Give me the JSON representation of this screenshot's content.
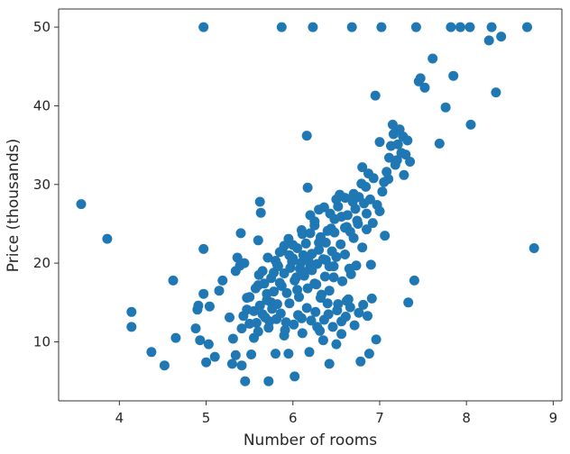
{
  "chart_data": {
    "type": "scatter",
    "title": "",
    "xlabel": "Number of rooms",
    "ylabel": "Price (thousands)",
    "xlim": [
      3.3,
      9.1
    ],
    "ylim": [
      2.5,
      52.3
    ],
    "xticks": [
      4,
      5,
      6,
      7,
      8,
      9
    ],
    "yticks": [
      10,
      20,
      30,
      40,
      50
    ],
    "grid": false,
    "marker_color": "#1f77b4",
    "series": [
      {
        "points": [
          [
            3.56,
            27.5
          ],
          [
            3.86,
            23.1
          ],
          [
            4.14,
            13.8
          ],
          [
            4.14,
            11.9
          ],
          [
            4.37,
            8.7
          ],
          [
            4.52,
            7.0
          ],
          [
            4.62,
            17.8
          ],
          [
            4.65,
            10.5
          ],
          [
            4.88,
            11.7
          ],
          [
            4.9,
            14.1
          ],
          [
            4.91,
            14.6
          ],
          [
            4.93,
            10.2
          ],
          [
            4.97,
            21.8
          ],
          [
            4.97,
            50.0
          ],
          [
            4.97,
            16.1
          ],
          [
            5.0,
            7.4
          ],
          [
            5.03,
            9.7
          ],
          [
            5.04,
            14.5
          ],
          [
            5.1,
            8.1
          ],
          [
            5.15,
            16.5
          ],
          [
            5.19,
            17.8
          ],
          [
            5.27,
            13.1
          ],
          [
            5.3,
            7.2
          ],
          [
            5.31,
            10.4
          ],
          [
            5.34,
            8.3
          ],
          [
            5.34,
            19.0
          ],
          [
            5.36,
            20.7
          ],
          [
            5.39,
            19.7
          ],
          [
            5.4,
            23.8
          ],
          [
            5.41,
            11.7
          ],
          [
            5.41,
            7.0
          ],
          [
            5.43,
            13.3
          ],
          [
            5.44,
            20.0
          ],
          [
            5.45,
            5.0
          ],
          [
            5.47,
            15.6
          ],
          [
            5.47,
            14.1
          ],
          [
            5.5,
            12.3
          ],
          [
            5.52,
            8.4
          ],
          [
            5.55,
            10.5
          ],
          [
            5.57,
            16.8
          ],
          [
            5.6,
            22.9
          ],
          [
            5.6,
            11.3
          ],
          [
            5.61,
            18.5
          ],
          [
            5.62,
            27.8
          ],
          [
            5.63,
            26.4
          ],
          [
            5.65,
            13.5
          ],
          [
            5.67,
            17.4
          ],
          [
            5.7,
            16.1
          ],
          [
            5.71,
            20.7
          ],
          [
            5.72,
            5.0
          ],
          [
            5.73,
            12.6
          ],
          [
            5.75,
            15.0
          ],
          [
            5.78,
            18.8
          ],
          [
            5.8,
            8.5
          ],
          [
            5.82,
            14.8
          ],
          [
            5.83,
            19.6
          ],
          [
            5.87,
            50.0
          ],
          [
            5.87,
            17.1
          ],
          [
            5.88,
            21.6
          ],
          [
            5.9,
            10.8
          ],
          [
            5.92,
            12.5
          ],
          [
            5.95,
            8.5
          ],
          [
            5.96,
            21.0
          ],
          [
            5.99,
            20.2
          ],
          [
            6.0,
            22.3
          ],
          [
            6.02,
            5.6
          ],
          [
            6.04,
            18.2
          ],
          [
            6.05,
            16.6
          ],
          [
            6.09,
            20.0
          ],
          [
            6.1,
            13.0
          ],
          [
            6.11,
            23.7
          ],
          [
            6.13,
            18.4
          ],
          [
            6.16,
            36.2
          ],
          [
            6.17,
            29.6
          ],
          [
            6.19,
            8.7
          ],
          [
            6.2,
            19.5
          ],
          [
            6.23,
            50.0
          ],
          [
            6.25,
            17.4
          ],
          [
            6.28,
            11.9
          ],
          [
            6.3,
            22.6
          ],
          [
            6.33,
            16.0
          ],
          [
            6.35,
            10.2
          ],
          [
            6.38,
            20.4
          ],
          [
            6.4,
            14.9
          ],
          [
            6.42,
            7.2
          ],
          [
            6.44,
            24.4
          ],
          [
            6.47,
            18.2
          ],
          [
            6.5,
            9.7
          ],
          [
            6.54,
            28.7
          ],
          [
            6.56,
            11.0
          ],
          [
            6.6,
            24.5
          ],
          [
            6.64,
            15.4
          ],
          [
            6.68,
            50.0
          ],
          [
            6.7,
            28.8
          ],
          [
            6.73,
            19.7
          ],
          [
            6.78,
            7.5
          ],
          [
            6.8,
            32.2
          ],
          [
            6.85,
            26.3
          ],
          [
            6.9,
            19.8
          ],
          [
            6.95,
            41.3
          ],
          [
            7.0,
            35.4
          ],
          [
            7.02,
            50.0
          ],
          [
            7.06,
            23.5
          ],
          [
            7.1,
            30.7
          ],
          [
            7.15,
            37.6
          ],
          [
            7.2,
            33.1
          ],
          [
            7.27,
            36.1
          ],
          [
            7.33,
            15.0
          ],
          [
            7.4,
            17.8
          ],
          [
            7.42,
            50.0
          ],
          [
            7.47,
            43.5
          ],
          [
            7.52,
            42.3
          ],
          [
            7.61,
            46.0
          ],
          [
            7.69,
            35.2
          ],
          [
            7.76,
            39.8
          ],
          [
            7.82,
            50.0
          ],
          [
            7.85,
            43.8
          ],
          [
            7.93,
            50.0
          ],
          [
            8.04,
            50.0
          ],
          [
            8.05,
            37.6
          ],
          [
            8.26,
            48.3
          ],
          [
            8.29,
            50.0
          ],
          [
            8.34,
            41.7
          ],
          [
            8.4,
            48.8
          ],
          [
            8.7,
            50.0
          ],
          [
            8.78,
            21.9
          ],
          [
            5.8,
            20.3
          ],
          [
            5.85,
            21.4
          ],
          [
            5.9,
            22.2
          ],
          [
            5.95,
            23.1
          ],
          [
            6.0,
            20.6
          ],
          [
            6.05,
            21.9
          ],
          [
            6.08,
            19.3
          ],
          [
            6.1,
            24.2
          ],
          [
            6.12,
            21.0
          ],
          [
            6.15,
            22.5
          ],
          [
            6.18,
            20.3
          ],
          [
            6.2,
            23.8
          ],
          [
            6.22,
            21.2
          ],
          [
            6.25,
            24.8
          ],
          [
            6.28,
            19.9
          ],
          [
            6.3,
            21.7
          ],
          [
            6.32,
            23.3
          ],
          [
            6.35,
            20.5
          ],
          [
            6.38,
            22.6
          ],
          [
            6.4,
            24.1
          ],
          [
            6.42,
            19.6
          ],
          [
            6.45,
            21.5
          ],
          [
            6.48,
            23.9
          ],
          [
            6.5,
            20.8
          ],
          [
            6.55,
            22.4
          ],
          [
            6.6,
            21.1
          ],
          [
            6.62,
            24.6
          ],
          [
            6.65,
            19.3
          ],
          [
            6.7,
            23.2
          ],
          [
            6.75,
            25.0
          ],
          [
            6.8,
            22.0
          ],
          [
            6.85,
            24.3
          ],
          [
            5.6,
            17.2
          ],
          [
            5.65,
            19.0
          ],
          [
            5.7,
            15.3
          ],
          [
            5.75,
            18.1
          ],
          [
            5.78,
            16.4
          ],
          [
            5.82,
            19.8
          ],
          [
            5.85,
            17.5
          ],
          [
            5.9,
            18.7
          ],
          [
            5.93,
            16.2
          ],
          [
            5.97,
            19.4
          ],
          [
            6.02,
            17.8
          ],
          [
            6.07,
            15.7
          ],
          [
            6.12,
            18.9
          ],
          [
            6.17,
            16.8
          ],
          [
            6.22,
            19.1
          ],
          [
            6.27,
            17.3
          ],
          [
            6.32,
            15.6
          ],
          [
            6.37,
            18.3
          ],
          [
            6.42,
            16.5
          ],
          [
            6.47,
            19.6
          ],
          [
            6.52,
            14.8
          ],
          [
            6.57,
            17.7
          ],
          [
            6.62,
            15.2
          ],
          [
            6.67,
            18.6
          ],
          [
            5.5,
            15.7
          ],
          [
            5.55,
            13.9
          ],
          [
            5.58,
            12.4
          ],
          [
            5.62,
            14.6
          ],
          [
            5.68,
            13.1
          ],
          [
            5.72,
            11.8
          ],
          [
            5.76,
            14.2
          ],
          [
            5.81,
            12.9
          ],
          [
            5.86,
            13.6
          ],
          [
            5.91,
            11.5
          ],
          [
            5.96,
            14.9
          ],
          [
            6.01,
            12.2
          ],
          [
            6.06,
            13.4
          ],
          [
            6.11,
            11.1
          ],
          [
            6.16,
            14.3
          ],
          [
            6.21,
            12.7
          ],
          [
            6.26,
            13.8
          ],
          [
            6.31,
            11.4
          ],
          [
            6.36,
            12.8
          ],
          [
            6.41,
            13.5
          ],
          [
            6.46,
            11.9
          ],
          [
            6.51,
            14.0
          ],
          [
            6.56,
            12.6
          ],
          [
            6.61,
            13.2
          ],
          [
            6.66,
            14.4
          ],
          [
            6.71,
            12.1
          ],
          [
            6.76,
            13.7
          ],
          [
            6.81,
            14.7
          ],
          [
            6.86,
            13.3
          ],
          [
            6.91,
            15.5
          ],
          [
            6.96,
            10.3
          ],
          [
            6.88,
            8.5
          ],
          [
            6.92,
            25.1
          ],
          [
            6.97,
            27.4
          ],
          [
            7.0,
            26.6
          ],
          [
            7.03,
            29.1
          ],
          [
            7.05,
            30.3
          ],
          [
            7.08,
            31.6
          ],
          [
            7.11,
            33.4
          ],
          [
            7.13,
            34.9
          ],
          [
            7.16,
            36.4
          ],
          [
            7.18,
            32.5
          ],
          [
            7.21,
            35.1
          ],
          [
            7.23,
            37.0
          ],
          [
            7.25,
            34.0
          ],
          [
            7.28,
            31.2
          ],
          [
            7.3,
            33.8
          ],
          [
            7.32,
            35.6
          ],
          [
            6.72,
            26.9
          ],
          [
            6.76,
            28.4
          ],
          [
            6.79,
            30.1
          ],
          [
            6.82,
            27.6
          ],
          [
            6.84,
            29.7
          ],
          [
            6.87,
            31.4
          ],
          [
            6.89,
            28.1
          ],
          [
            6.93,
            30.8
          ],
          [
            6.48,
            25.6
          ],
          [
            6.52,
            27.2
          ],
          [
            6.56,
            25.9
          ],
          [
            6.6,
            28.3
          ],
          [
            6.63,
            26.1
          ],
          [
            6.66,
            24.0
          ],
          [
            6.69,
            27.8
          ],
          [
            6.74,
            25.4
          ],
          [
            6.2,
            26.1
          ],
          [
            6.25,
            25.3
          ],
          [
            6.3,
            26.8
          ],
          [
            6.36,
            27.1
          ],
          [
            6.43,
            26.3
          ],
          [
            6.5,
            28.1
          ],
          [
            7.35,
            32.9
          ],
          [
            7.45,
            43.1
          ]
        ]
      }
    ]
  }
}
